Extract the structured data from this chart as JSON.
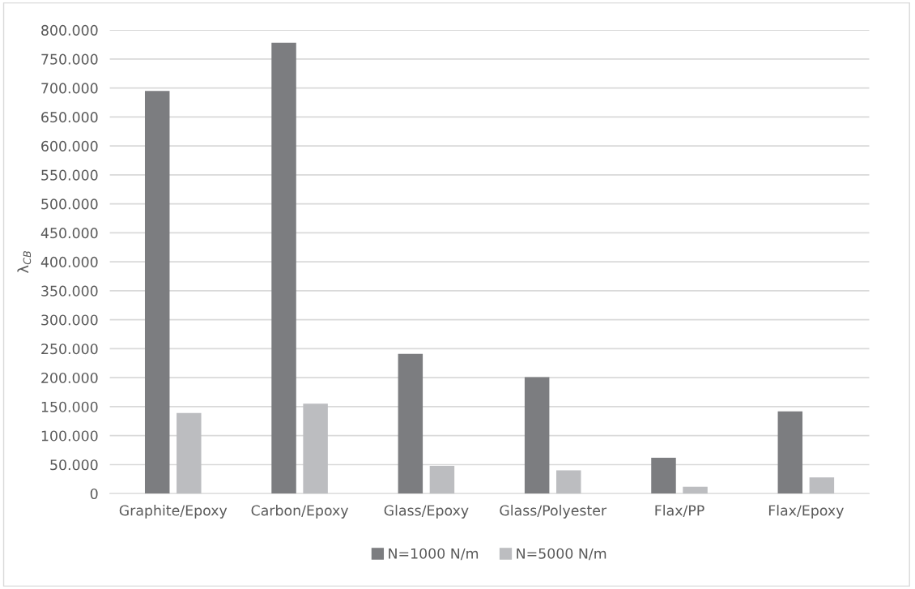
{
  "chart_data": {
    "type": "bar",
    "ylabel": "λ$_{CB}$",
    "categories": [
      "Graphite/Epoxy",
      "Carbon/Epoxy",
      "Glass/Epoxy",
      "Glass/Polyester",
      "Flax/PP",
      "Flax/Epoxy"
    ],
    "series": [
      {
        "name": "N=1000 N/m",
        "color": "#7c7d80",
        "values": [
          695000,
          778000,
          241000,
          201000,
          62000,
          142000
        ]
      },
      {
        "name": "N=5000 N/m",
        "color": "#bcbdc0",
        "values": [
          139000,
          155000,
          48000,
          40000,
          12000,
          28000
        ]
      }
    ],
    "ylim": [
      0,
      800000
    ],
    "yticks": [
      {
        "value": 0,
        "label": "0"
      },
      {
        "value": 50000,
        "label": "50.000"
      },
      {
        "value": 100000,
        "label": "100.000"
      },
      {
        "value": 150000,
        "label": "150.000"
      },
      {
        "value": 200000,
        "label": "200.000"
      },
      {
        "value": 250000,
        "label": "250.000"
      },
      {
        "value": 300000,
        "label": "300.000"
      },
      {
        "value": 350000,
        "label": "350.000"
      },
      {
        "value": 400000,
        "label": "400.000"
      },
      {
        "value": 450000,
        "label": "450.000"
      },
      {
        "value": 500000,
        "label": "500.000"
      },
      {
        "value": 550000,
        "label": "550.000"
      },
      {
        "value": 600000,
        "label": "600.000"
      },
      {
        "value": 650000,
        "label": "650.000"
      },
      {
        "value": 700000,
        "label": "700.000"
      },
      {
        "value": 750000,
        "label": "750.000"
      },
      {
        "value": 800000,
        "label": "800.000"
      }
    ],
    "grid": "y",
    "legend": "bottom"
  }
}
